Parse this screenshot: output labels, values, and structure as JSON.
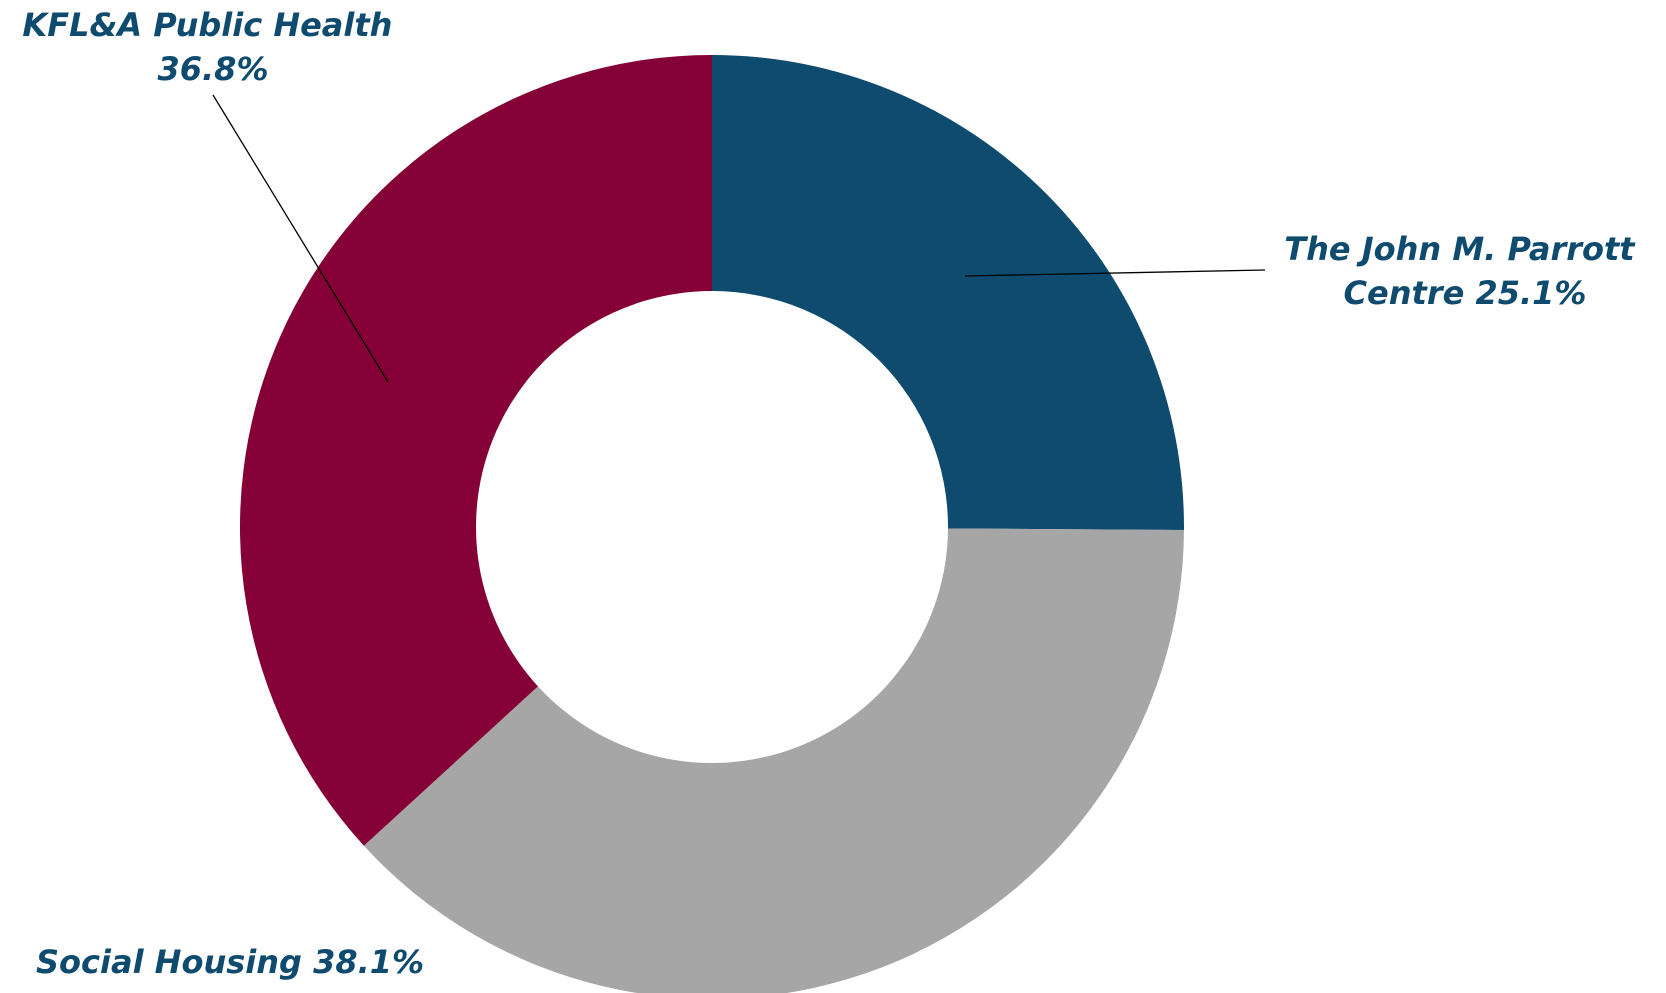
{
  "chart_data": {
    "type": "pie",
    "donut": true,
    "title": "",
    "legend": "none",
    "start_angle": "12 o'clock",
    "direction": "clockwise",
    "slices": [
      {
        "name": "The John M. Parrott Centre",
        "value": 25.1,
        "label_lines": [
          "The John M. Parrott",
          "Centre 25.1%"
        ],
        "color": "#0e4b6f"
      },
      {
        "name": "Social Housing",
        "value": 38.1,
        "label_lines": [
          "Social Housing 38.1%"
        ],
        "color": "#a6a6a6"
      },
      {
        "name": "KFL&A Public Health",
        "value": 36.8,
        "label_lines": [
          "KFL&A Public Health",
          "36.8%"
        ],
        "color": "#840036"
      }
    ]
  }
}
